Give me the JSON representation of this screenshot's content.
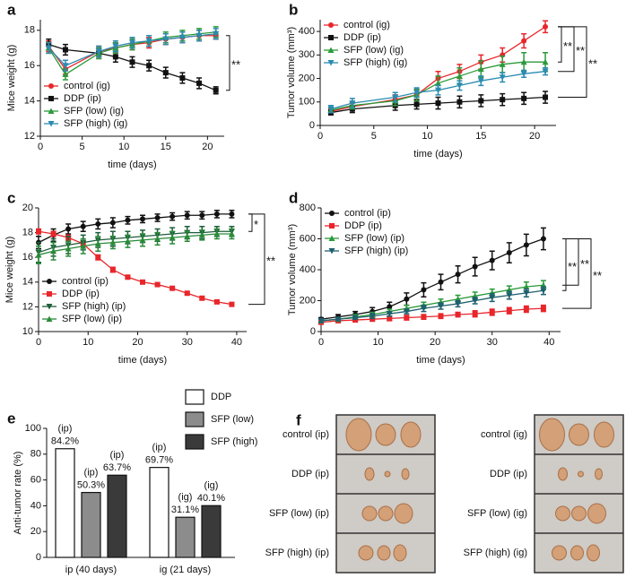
{
  "chart_data": [
    {
      "type": "line",
      "label": "a",
      "ylabel": "Mice weight (g)",
      "xlabel": "time (days)",
      "x": [
        1,
        3,
        7,
        9,
        11,
        13,
        15,
        17,
        19,
        21
      ],
      "xlim": [
        0,
        22
      ],
      "xticks": [
        0,
        5,
        10,
        15,
        20
      ],
      "ylim": [
        12,
        18.6
      ],
      "yticks": [
        12,
        14,
        16,
        18
      ],
      "legend": "lower left",
      "series": [
        {
          "name": "control (ig)",
          "color": "#e8262b",
          "marker": "circle",
          "values": [
            17.1,
            15.8,
            16.8,
            17.0,
            17.2,
            17.3,
            17.5,
            17.6,
            17.7,
            17.7
          ],
          "errors": [
            0.3,
            0.3,
            0.3,
            0.3,
            0.3,
            0.3,
            0.3,
            0.3,
            0.3,
            0.2
          ]
        },
        {
          "name": "DDP (ip)",
          "color": "#111111",
          "marker": "square",
          "values": [
            17.2,
            16.9,
            16.7,
            16.5,
            16.2,
            16.0,
            15.6,
            15.3,
            15.0,
            14.6
          ],
          "errors": [
            0.3,
            0.3,
            0.3,
            0.3,
            0.3,
            0.3,
            0.3,
            0.3,
            0.3,
            0.2
          ]
        },
        {
          "name": "SFP (low) (ig)",
          "color": "#2a9a3a",
          "marker": "triangle-up",
          "values": [
            17.0,
            15.5,
            16.7,
            17.0,
            17.2,
            17.4,
            17.6,
            17.7,
            17.8,
            17.9
          ],
          "errors": [
            0.3,
            0.3,
            0.3,
            0.3,
            0.3,
            0.3,
            0.3,
            0.3,
            0.3,
            0.3
          ]
        },
        {
          "name": "SFP (high) (ig)",
          "color": "#2b8bb0",
          "marker": "triangle-down",
          "values": [
            17.0,
            16.0,
            16.8,
            17.1,
            17.3,
            17.4,
            17.5,
            17.6,
            17.7,
            17.8
          ],
          "errors": [
            0.3,
            0.3,
            0.3,
            0.3,
            0.3,
            0.3,
            0.3,
            0.3,
            0.3,
            0.3
          ]
        }
      ],
      "annotations": [
        "**"
      ]
    },
    {
      "type": "line",
      "label": "b",
      "ylabel": "Tumor volume (mm³)",
      "xlabel": "time (days)",
      "x": [
        1,
        3,
        7,
        9,
        11,
        13,
        15,
        17,
        19,
        21
      ],
      "xlim": [
        0,
        22
      ],
      "xticks": [
        0,
        5,
        10,
        15,
        20
      ],
      "ylim": [
        0,
        450
      ],
      "yticks": [
        0,
        100,
        200,
        300,
        400
      ],
      "legend": "upper left",
      "series": [
        {
          "name": "control (ig)",
          "color": "#e8262b",
          "marker": "circle",
          "values": [
            60,
            80,
            110,
            130,
            200,
            230,
            270,
            300,
            360,
            420
          ],
          "errors": [
            10,
            15,
            20,
            20,
            30,
            30,
            30,
            30,
            30,
            25
          ]
        },
        {
          "name": "DDP (ip)",
          "color": "#111111",
          "marker": "square",
          "values": [
            55,
            70,
            85,
            90,
            95,
            100,
            105,
            110,
            115,
            120
          ],
          "errors": [
            10,
            15,
            20,
            20,
            25,
            25,
            25,
            25,
            25,
            25
          ]
        },
        {
          "name": "SFP (low) (ig)",
          "color": "#2a9a3a",
          "marker": "triangle-up",
          "values": [
            65,
            85,
            105,
            130,
            180,
            210,
            240,
            260,
            270,
            270
          ],
          "errors": [
            10,
            15,
            20,
            25,
            30,
            35,
            35,
            35,
            40,
            40
          ]
        },
        {
          "name": "SFP (high) (ig)",
          "color": "#2b8bb0",
          "marker": "triangle-down",
          "values": [
            70,
            95,
            120,
            140,
            150,
            170,
            190,
            205,
            220,
            230
          ],
          "errors": [
            15,
            20,
            20,
            20,
            20,
            20,
            20,
            20,
            15,
            15
          ]
        }
      ],
      "annotations": [
        "**",
        "**",
        "**"
      ]
    },
    {
      "type": "line",
      "label": "c",
      "ylabel": "Mice weight (g)",
      "xlabel": "time (days)",
      "x": [
        0,
        3,
        6,
        9,
        12,
        15,
        18,
        21,
        24,
        27,
        30,
        33,
        36,
        39
      ],
      "xlim": [
        0,
        42
      ],
      "xticks": [
        0,
        10,
        20,
        30,
        40
      ],
      "ylim": [
        10,
        20
      ],
      "yticks": [
        10,
        12,
        14,
        16,
        18,
        20
      ],
      "legend": "lower left",
      "series": [
        {
          "name": "control (ip)",
          "color": "#111111",
          "marker": "circle",
          "values": [
            17.2,
            17.8,
            18.3,
            18.5,
            18.7,
            18.8,
            19.0,
            19.1,
            19.2,
            19.3,
            19.4,
            19.4,
            19.5,
            19.5
          ],
          "errors": [
            0.5,
            0.5,
            0.4,
            0.4,
            0.4,
            0.4,
            0.3,
            0.3,
            0.3,
            0.3,
            0.3,
            0.3,
            0.3,
            0.3
          ]
        },
        {
          "name": "DDP (ip)",
          "color": "#e8262b",
          "marker": "square",
          "values": [
            18.1,
            17.9,
            17.6,
            17.1,
            16.0,
            15.0,
            14.4,
            14.0,
            13.8,
            13.5,
            13.1,
            12.7,
            12.4,
            12.2
          ],
          "errors": [
            0.2,
            0.2,
            0.2,
            0.2,
            0.2,
            0.2,
            0.1,
            0.1,
            0.1,
            0.1,
            0.1,
            0.1,
            0.1,
            0.1
          ]
        },
        {
          "name": "SFP (high) (ip)",
          "color": "#1e5e3a",
          "marker": "triangle-down",
          "values": [
            16.4,
            16.8,
            17.0,
            17.2,
            17.4,
            17.5,
            17.6,
            17.7,
            17.8,
            17.9,
            18.0,
            18.0,
            18.1,
            18.1
          ],
          "errors": [
            0.8,
            0.7,
            0.7,
            0.6,
            0.6,
            0.6,
            0.5,
            0.5,
            0.5,
            0.5,
            0.5,
            0.5,
            0.4,
            0.4
          ]
        },
        {
          "name": "SFP (low) (ip)",
          "color": "#2a8a3a",
          "marker": "triangle-up",
          "values": [
            16.2,
            16.5,
            16.7,
            16.9,
            17.1,
            17.2,
            17.3,
            17.4,
            17.5,
            17.6,
            17.7,
            17.8,
            17.9,
            17.9
          ],
          "errors": [
            0.7,
            0.7,
            0.6,
            0.6,
            0.6,
            0.5,
            0.5,
            0.5,
            0.5,
            0.5,
            0.4,
            0.4,
            0.4,
            0.4
          ]
        }
      ],
      "annotations": [
        "*",
        "**"
      ]
    },
    {
      "type": "line",
      "label": "d",
      "ylabel": "Tumor volume (mm³)",
      "xlabel": "time (days)",
      "x": [
        0,
        3,
        6,
        9,
        12,
        15,
        18,
        21,
        24,
        27,
        30,
        33,
        36,
        39
      ],
      "xlim": [
        0,
        42
      ],
      "xticks": [
        0,
        10,
        20,
        30,
        40
      ],
      "ylim": [
        0,
        800
      ],
      "yticks": [
        0,
        200,
        400,
        600,
        800
      ],
      "legend": "upper left",
      "series": [
        {
          "name": "control (ip)",
          "color": "#111111",
          "marker": "circle",
          "values": [
            80,
            95,
            110,
            130,
            160,
            210,
            270,
            320,
            370,
            420,
            460,
            510,
            560,
            600
          ],
          "errors": [
            10,
            15,
            20,
            25,
            30,
            40,
            45,
            50,
            55,
            60,
            60,
            65,
            70,
            70
          ]
        },
        {
          "name": "DDP (ip)",
          "color": "#e8262b",
          "marker": "square",
          "values": [
            60,
            70,
            75,
            80,
            85,
            90,
            95,
            100,
            110,
            115,
            125,
            135,
            145,
            150
          ],
          "errors": [
            10,
            10,
            10,
            10,
            15,
            15,
            15,
            15,
            15,
            20,
            20,
            20,
            20,
            20
          ]
        },
        {
          "name": "SFP (low) (ip)",
          "color": "#2a9a3a",
          "marker": "triangle-up",
          "values": [
            70,
            80,
            95,
            110,
            130,
            150,
            170,
            190,
            210,
            230,
            250,
            270,
            290,
            300
          ],
          "errors": [
            10,
            10,
            15,
            15,
            15,
            20,
            20,
            20,
            25,
            25,
            25,
            25,
            30,
            30
          ]
        },
        {
          "name": "SFP (high) (ip)",
          "color": "#1f5f6f",
          "marker": "triangle-down",
          "values": [
            70,
            80,
            90,
            100,
            115,
            130,
            150,
            165,
            180,
            200,
            220,
            235,
            250,
            265
          ],
          "errors": [
            10,
            10,
            10,
            15,
            15,
            15,
            20,
            20,
            20,
            20,
            25,
            25,
            25,
            25
          ]
        }
      ],
      "annotations": [
        "**",
        "**",
        "**"
      ]
    },
    {
      "type": "bar",
      "label": "e",
      "ylabel": "Anti-tumor rate (%)",
      "categories": [
        "ip (40 days)",
        "ig (21 days)"
      ],
      "ylim": [
        0,
        100
      ],
      "yticks": [
        0,
        20,
        40,
        60,
        80,
        100
      ],
      "legend": "upper right",
      "series": [
        {
          "name": "DDP",
          "color": "#ffffff",
          "values": [
            84.2,
            69.7
          ],
          "value_labels": [
            "84.2%",
            "69.7%"
          ],
          "notes": [
            "(ip)",
            "(ip)"
          ]
        },
        {
          "name": "SFP (low)",
          "color": "#8c8c8c",
          "values": [
            50.3,
            31.1
          ],
          "value_labels": [
            "50.3%",
            "31.1%"
          ],
          "notes": [
            "(ip)",
            "(ig)"
          ]
        },
        {
          "name": "SFP (high)",
          "color": "#3a3a3a",
          "values": [
            63.7,
            40.1
          ],
          "value_labels": [
            "63.7%",
            "40.1%"
          ],
          "notes": [
            "(ip)",
            "(ig)"
          ]
        }
      ]
    }
  ],
  "photos": {
    "label": "f",
    "groups": [
      {
        "rows": [
          "control (ip)",
          "DDP (ip)",
          "SFP (low) (ip)",
          "SFP (high) (ip)"
        ]
      },
      {
        "rows": [
          "control (ig)",
          "DDP (ip)",
          "SFP (low) (ig)",
          "SFP (high) (ig)"
        ]
      }
    ]
  }
}
